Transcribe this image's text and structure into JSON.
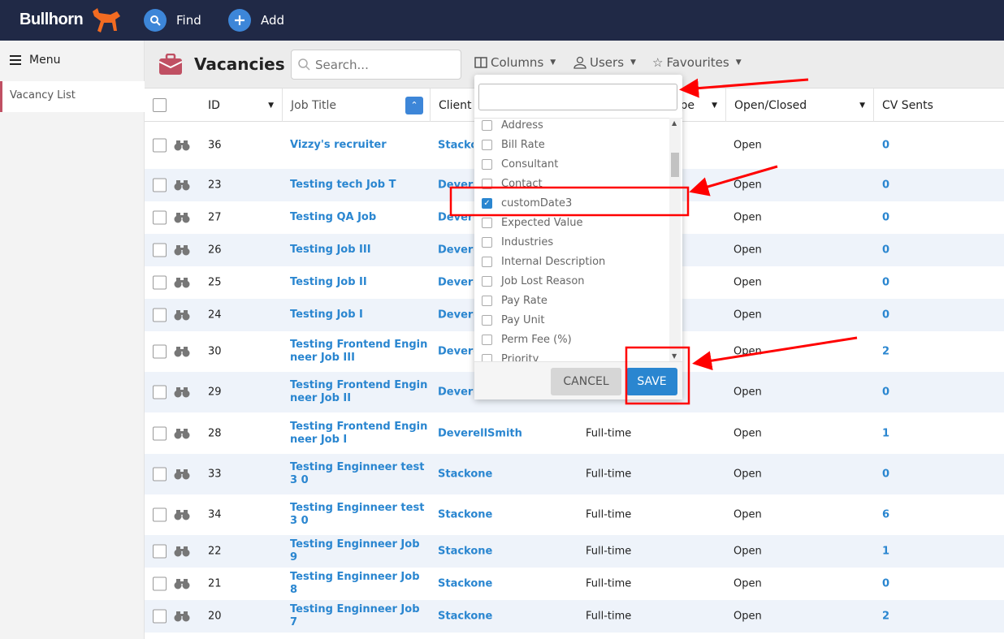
{
  "topbar": {
    "logo": "Bullhorn",
    "find": "Find",
    "add": "Add"
  },
  "sidebar": {
    "menu": "Menu",
    "items": [
      {
        "label": "Vacancy List"
      }
    ]
  },
  "header": {
    "title": "Vacancies",
    "search_placeholder": "Search...",
    "columns": "Columns",
    "users": "Users",
    "favourites": "Favourites"
  },
  "table": {
    "headers": {
      "id": "ID",
      "job_title": "Job Title",
      "client": "Client",
      "type": "Employment Type",
      "open_closed": "Open/Closed",
      "cv_sents": "CV Sents"
    },
    "rows": [
      {
        "id": "36",
        "title": "Vizzy's recruiter",
        "client": "Stackone",
        "type": "",
        "status": "Open",
        "cv": "0"
      },
      {
        "id": "23",
        "title": "Testing tech Job T",
        "client": "DeverellSmith",
        "type": "",
        "status": "Open",
        "cv": "0"
      },
      {
        "id": "27",
        "title": "Testing QA Job",
        "client": "DeverellSmith",
        "type": "",
        "status": "Open",
        "cv": "0"
      },
      {
        "id": "26",
        "title": "Testing Job III",
        "client": "DeverellSmith",
        "type": "",
        "status": "Open",
        "cv": "0"
      },
      {
        "id": "25",
        "title": "Testing Job II",
        "client": "DeverellSmith",
        "type": "",
        "status": "Open",
        "cv": "0"
      },
      {
        "id": "24",
        "title": "Testing Job I",
        "client": "DeverellSmith",
        "type": "",
        "status": "Open",
        "cv": "0"
      },
      {
        "id": "30",
        "title": "Testing Frontend Engin neer Job III",
        "client": "DeverellSmith",
        "type": "",
        "status": "Open",
        "cv": "2"
      },
      {
        "id": "29",
        "title": "Testing Frontend Engin neer Job II",
        "client": "DeverellSmith",
        "type": "",
        "status": "Open",
        "cv": "0"
      },
      {
        "id": "28",
        "title": "Testing Frontend Engin neer Job I",
        "client": "DeverellSmith",
        "type": "Full-time",
        "status": "Open",
        "cv": "1"
      },
      {
        "id": "33",
        "title": "Testing Enginneer test 3 0",
        "client": "Stackone",
        "type": "Full-time",
        "status": "Open",
        "cv": "0"
      },
      {
        "id": "34",
        "title": "Testing Enginneer test 3 0",
        "client": "Stackone",
        "type": "Full-time",
        "status": "Open",
        "cv": "6"
      },
      {
        "id": "22",
        "title": "Testing Enginneer Job 9",
        "client": "Stackone",
        "type": "Full-time",
        "status": "Open",
        "cv": "1"
      },
      {
        "id": "21",
        "title": "Testing Enginneer Job 8",
        "client": "Stackone",
        "type": "Full-time",
        "status": "Open",
        "cv": "0"
      },
      {
        "id": "20",
        "title": "Testing Enginneer Job 7",
        "client": "Stackone",
        "type": "Full-time",
        "status": "Open",
        "cv": "2"
      }
    ]
  },
  "columns_dropdown": {
    "search_value": "",
    "items": [
      {
        "label": "Address",
        "checked": false
      },
      {
        "label": "Bill Rate",
        "checked": false
      },
      {
        "label": "Consultant",
        "checked": false
      },
      {
        "label": "Contact",
        "checked": false
      },
      {
        "label": "customDate3",
        "checked": true
      },
      {
        "label": "Expected Value",
        "checked": false
      },
      {
        "label": "Industries",
        "checked": false
      },
      {
        "label": "Internal Description",
        "checked": false
      },
      {
        "label": "Job Lost Reason",
        "checked": false
      },
      {
        "label": "Pay Rate",
        "checked": false
      },
      {
        "label": "Pay Unit",
        "checked": false
      },
      {
        "label": "Perm Fee (%)",
        "checked": false
      },
      {
        "label": "Priority",
        "checked": false
      }
    ],
    "cancel": "CANCEL",
    "save": "SAVE"
  },
  "colors": {
    "topbar": "#202946",
    "accent": "#2a86d0",
    "annotation": "#ff0000",
    "brand": "#f26b21"
  }
}
